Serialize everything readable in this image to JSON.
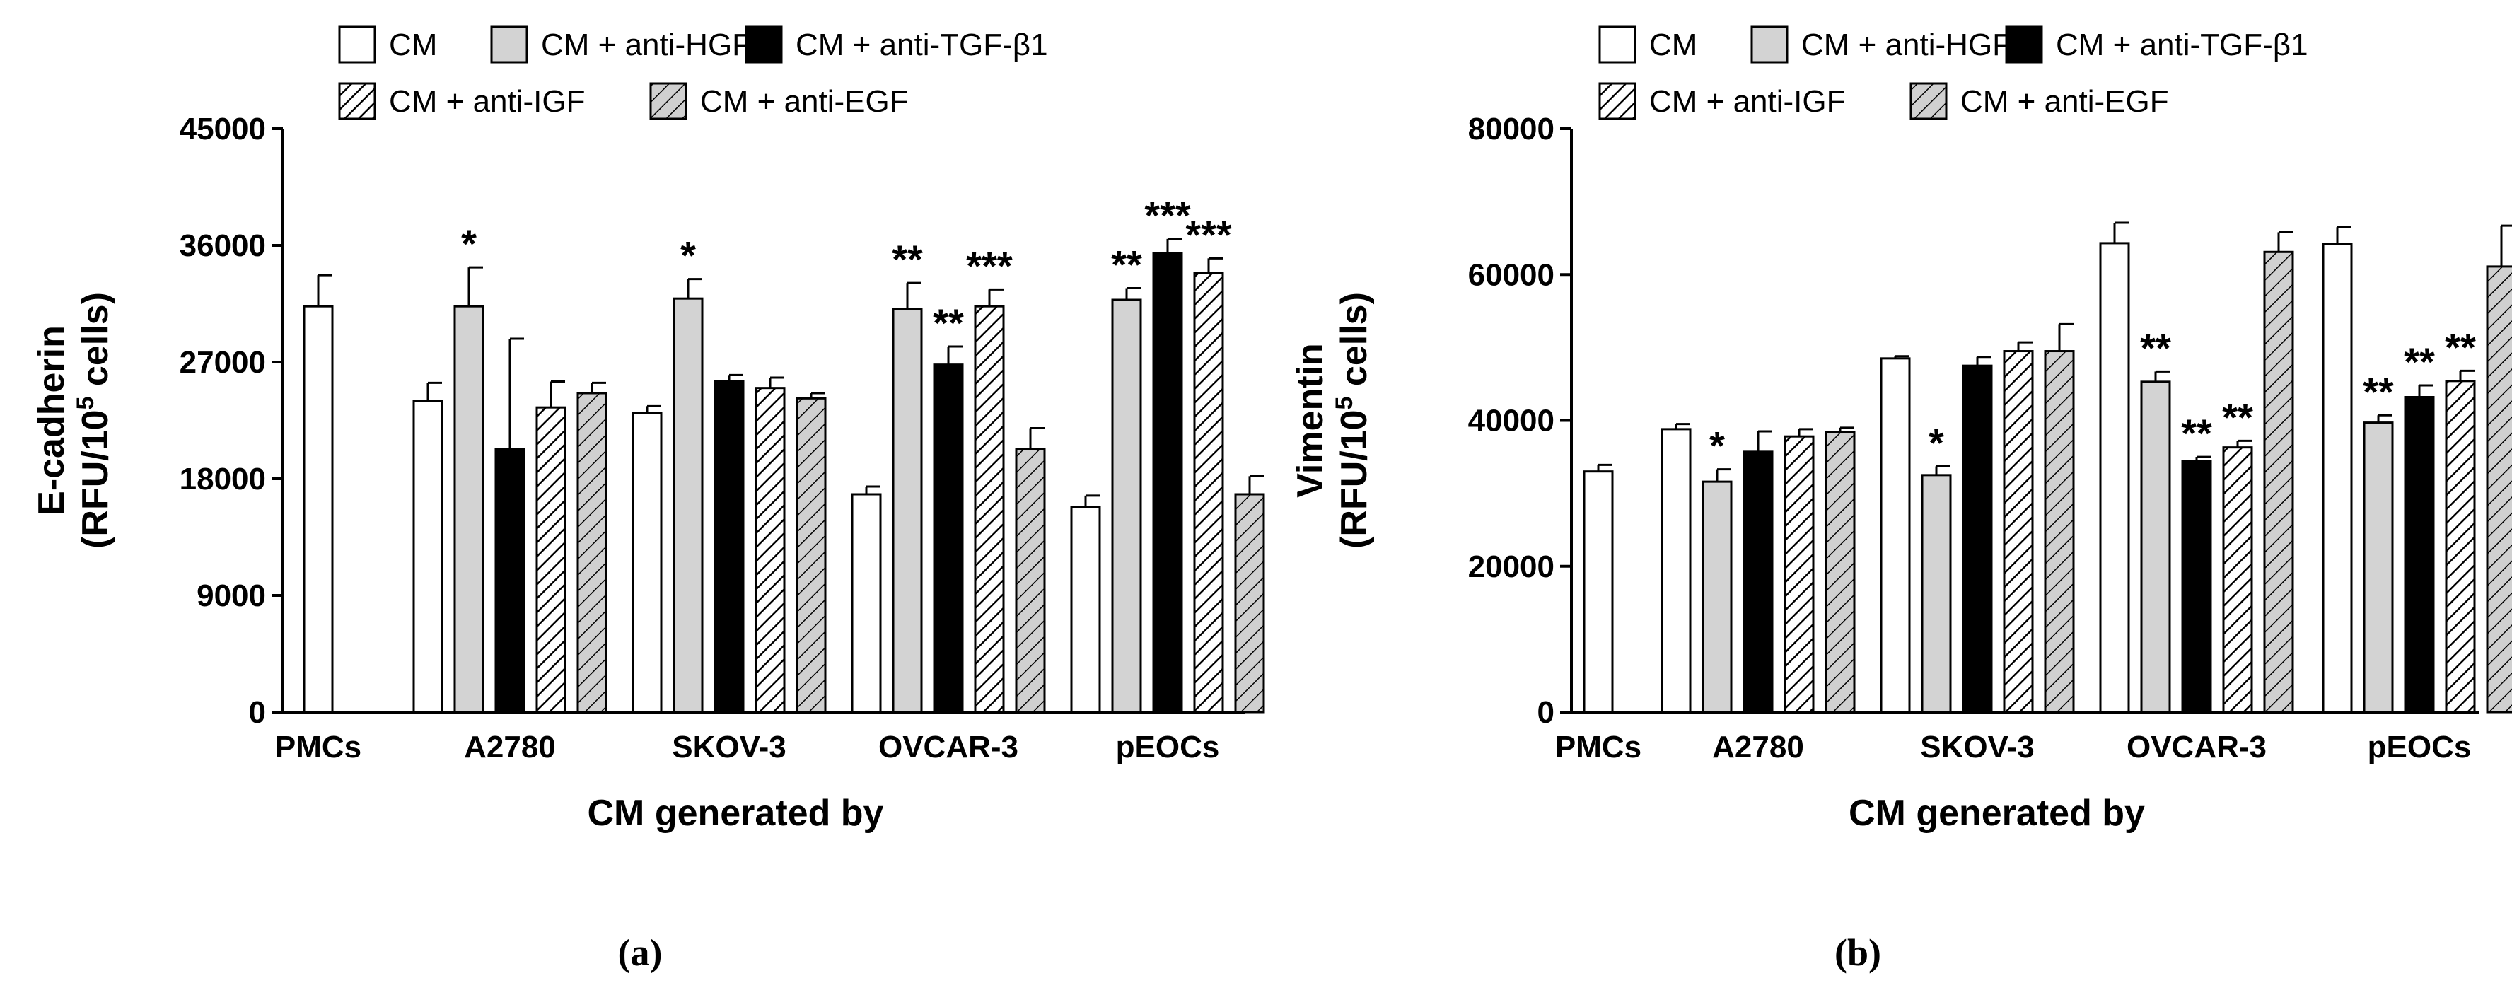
{
  "chart_data": [
    {
      "type": "bar",
      "panel_label": "(a)",
      "ylabel_line1": "E-cadherin",
      "ylabel_line2_prefix": "(RFU/10",
      "ylabel_line2_sup": "5",
      "ylabel_line2_suffix": " cells)",
      "xlabel": "CM generated by",
      "ylim": [
        0,
        45000
      ],
      "yticks": [
        "0",
        "9000",
        "18000",
        "27000",
        "36000",
        "45000"
      ],
      "legend": [
        "CM",
        "CM + anti-HGF",
        "CM + anti-TGF-β1",
        "CM + anti-IGF",
        "CM + anti-EGF"
      ],
      "groups": [
        {
          "label": "PMCs",
          "bars": [
            {
              "series": 0,
              "value": 31300,
              "err": 2400,
              "sig": ""
            }
          ]
        },
        {
          "label": "A2780",
          "bars": [
            {
              "series": 0,
              "value": 24000,
              "err": 1400,
              "sig": ""
            },
            {
              "series": 1,
              "value": 31300,
              "err": 3000,
              "sig": "*"
            },
            {
              "series": 2,
              "value": 20300,
              "err": 8500,
              "sig": ""
            },
            {
              "series": 3,
              "value": 23500,
              "err": 2000,
              "sig": ""
            },
            {
              "series": 4,
              "value": 24600,
              "err": 800,
              "sig": ""
            }
          ]
        },
        {
          "label": "SKOV-3",
          "bars": [
            {
              "series": 0,
              "value": 23100,
              "err": 500,
              "sig": ""
            },
            {
              "series": 1,
              "value": 31900,
              "err": 1500,
              "sig": "*"
            },
            {
              "series": 2,
              "value": 25500,
              "err": 500,
              "sig": ""
            },
            {
              "series": 3,
              "value": 25000,
              "err": 800,
              "sig": ""
            },
            {
              "series": 4,
              "value": 24200,
              "err": 400,
              "sig": ""
            }
          ]
        },
        {
          "label": "OVCAR-3",
          "bars": [
            {
              "series": 0,
              "value": 16800,
              "err": 600,
              "sig": ""
            },
            {
              "series": 1,
              "value": 31100,
              "err": 2000,
              "sig": "**"
            },
            {
              "series": 2,
              "value": 26800,
              "err": 1400,
              "sig": "**"
            },
            {
              "series": 3,
              "value": 31300,
              "err": 1300,
              "sig": "***"
            },
            {
              "series": 4,
              "value": 20300,
              "err": 1600,
              "sig": ""
            }
          ]
        },
        {
          "label": "pEOCs",
          "bars": [
            {
              "series": 0,
              "value": 15800,
              "err": 900,
              "sig": ""
            },
            {
              "series": 1,
              "value": 31800,
              "err": 900,
              "sig": "**"
            },
            {
              "series": 2,
              "value": 35400,
              "err": 1100,
              "sig": "***"
            },
            {
              "series": 3,
              "value": 33900,
              "err": 1100,
              "sig": "***"
            },
            {
              "series": 4,
              "value": 16800,
              "err": 1400,
              "sig": ""
            }
          ]
        }
      ]
    },
    {
      "type": "bar",
      "panel_label": "(b)",
      "ylabel_line1": "Vimentin",
      "ylabel_line2_prefix": "(RFU/10",
      "ylabel_line2_sup": "5",
      "ylabel_line2_suffix": " cells)",
      "xlabel": "CM generated by",
      "ylim": [
        0,
        80000
      ],
      "yticks": [
        "0",
        "20000",
        "40000",
        "60000",
        "80000"
      ],
      "legend": [
        "CM",
        "CM + anti-HGF",
        "CM + anti-TGF-β1",
        "CM + anti-IGF",
        "CM + anti-EGF"
      ],
      "groups": [
        {
          "label": "PMCs",
          "bars": [
            {
              "series": 0,
              "value": 33000,
              "err": 900,
              "sig": ""
            }
          ]
        },
        {
          "label": "A2780",
          "bars": [
            {
              "series": 0,
              "value": 38800,
              "err": 700,
              "sig": ""
            },
            {
              "series": 1,
              "value": 31600,
              "err": 1700,
              "sig": "*"
            },
            {
              "series": 2,
              "value": 35700,
              "err": 2800,
              "sig": ""
            },
            {
              "series": 3,
              "value": 37800,
              "err": 1000,
              "sig": ""
            },
            {
              "series": 4,
              "value": 38400,
              "err": 600,
              "sig": ""
            }
          ]
        },
        {
          "label": "SKOV-3",
          "bars": [
            {
              "series": 0,
              "value": 48500,
              "err": 300,
              "sig": ""
            },
            {
              "series": 1,
              "value": 32500,
              "err": 1200,
              "sig": "*"
            },
            {
              "series": 2,
              "value": 47500,
              "err": 1200,
              "sig": ""
            },
            {
              "series": 3,
              "value": 49500,
              "err": 1200,
              "sig": ""
            },
            {
              "series": 4,
              "value": 49500,
              "err": 3700,
              "sig": ""
            }
          ]
        },
        {
          "label": "OVCAR-3",
          "bars": [
            {
              "series": 0,
              "value": 64300,
              "err": 2800,
              "sig": ""
            },
            {
              "series": 1,
              "value": 45300,
              "err": 1400,
              "sig": "**"
            },
            {
              "series": 2,
              "value": 34400,
              "err": 600,
              "sig": "**"
            },
            {
              "series": 3,
              "value": 36300,
              "err": 900,
              "sig": "**"
            },
            {
              "series": 4,
              "value": 63100,
              "err": 2700,
              "sig": ""
            }
          ]
        },
        {
          "label": "pEOCs",
          "bars": [
            {
              "series": 0,
              "value": 64200,
              "err": 2300,
              "sig": ""
            },
            {
              "series": 1,
              "value": 39700,
              "err": 1000,
              "sig": "**"
            },
            {
              "series": 2,
              "value": 43200,
              "err": 1600,
              "sig": "**"
            },
            {
              "series": 3,
              "value": 45400,
              "err": 1400,
              "sig": "**"
            },
            {
              "series": 4,
              "value": 61100,
              "err": 5600,
              "sig": ""
            }
          ]
        }
      ]
    }
  ]
}
